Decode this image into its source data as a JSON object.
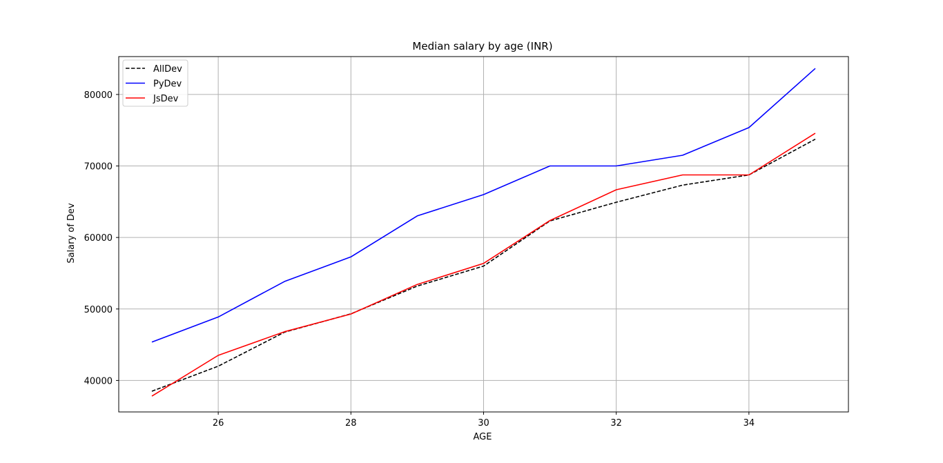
{
  "chart_data": {
    "type": "line",
    "title": "Median salary by age (INR)",
    "xlabel": "AGE",
    "ylabel": "Salary of Dev",
    "x": [
      25,
      26,
      27,
      28,
      29,
      30,
      31,
      32,
      33,
      34,
      35
    ],
    "xlim": [
      24.5,
      35.5
    ],
    "ylim": [
      35600,
      85300
    ],
    "xticks": [
      26,
      28,
      30,
      32,
      34
    ],
    "yticks": [
      40000,
      50000,
      60000,
      70000,
      80000
    ],
    "grid": true,
    "legend_position": "upper-left",
    "series": [
      {
        "name": "AllDev",
        "color": "#000000",
        "dashed": true,
        "values": [
          38496,
          42000,
          46752,
          49320,
          53200,
          56000,
          62316,
          64928,
          67317,
          68748,
          73752
        ]
      },
      {
        "name": "PyDev",
        "color": "#0000ff",
        "dashed": false,
        "values": [
          45372,
          48876,
          53850,
          57287,
          63016,
          65998,
          70003,
          70000,
          71496,
          75370,
          83640
        ]
      },
      {
        "name": "JsDev",
        "color": "#ff0000",
        "dashed": false,
        "values": [
          37810,
          43515,
          46823,
          49293,
          53437,
          56373,
          62375,
          66674,
          68745,
          68746,
          74583
        ]
      }
    ]
  }
}
